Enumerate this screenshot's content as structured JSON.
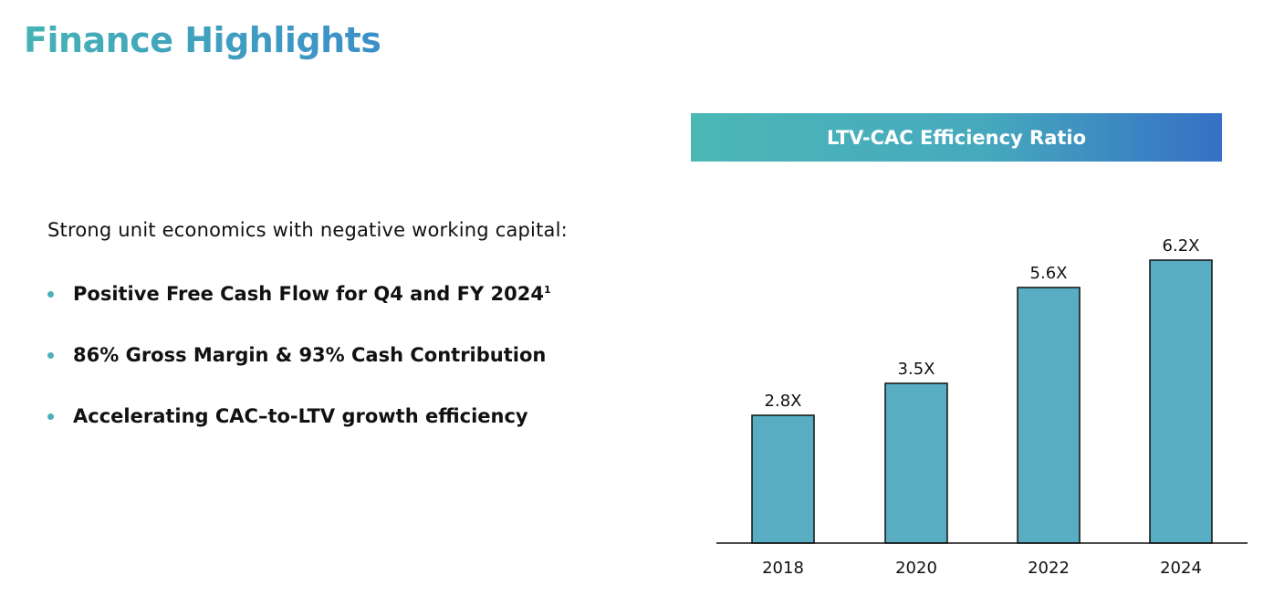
{
  "page": {
    "title": "Finance Highlights",
    "intro": "Strong unit economics with negative working capital:",
    "bullets": [
      {
        "text": "Positive Free Cash Flow for Q4 and FY 2024",
        "superscript": "1"
      },
      {
        "text": "86% Gross Margin & 93% Cash Contribution",
        "superscript": ""
      },
      {
        "text": "Accelerating CAC–to-LTV growth efficiency",
        "superscript": ""
      }
    ],
    "colors": {
      "title_gradient_start": "#45b3b4",
      "title_gradient_end": "#3c8fc9",
      "bullet": "#4bb0b8",
      "banner_start": "#4bb7b6",
      "banner_end": "#3570c6"
    }
  },
  "chart_data": {
    "type": "bar",
    "title": "LTV-CAC Efficiency Ratio",
    "categories": [
      "2018",
      "2020",
      "2022",
      "2024"
    ],
    "values": [
      2.8,
      3.5,
      5.6,
      6.2
    ],
    "value_labels": [
      "2.8X",
      "3.5X",
      "5.6X",
      "6.2X"
    ],
    "ylim": [
      0,
      7
    ],
    "xlabel": "",
    "ylabel": "",
    "grid": false,
    "legend": "none",
    "bar_color": "#58adc3",
    "bar_outline": "#111111"
  }
}
